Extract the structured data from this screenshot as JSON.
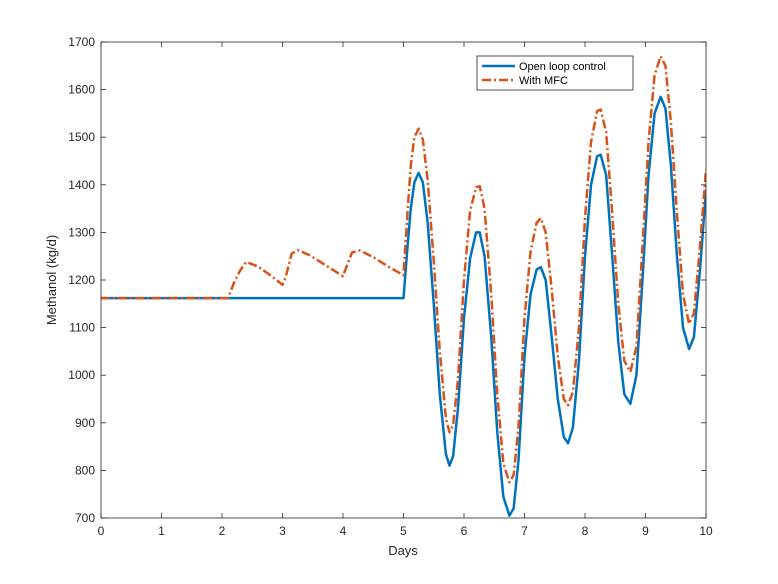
{
  "chart_data": {
    "type": "line",
    "title": "",
    "xlabel": "Days",
    "ylabel": "Methanol (kg/d)",
    "xlim": [
      0,
      10
    ],
    "ylim": [
      700,
      1700
    ],
    "x_ticks": [
      0,
      1,
      2,
      3,
      4,
      5,
      6,
      7,
      8,
      9,
      10
    ],
    "y_ticks": [
      700,
      800,
      900,
      1000,
      1100,
      1200,
      1300,
      1400,
      1500,
      1600,
      1700
    ],
    "grid": false,
    "legend_position": "top-right",
    "series": [
      {
        "name": "Open loop control",
        "color": "#0072BD",
        "style": "solid",
        "points": [
          [
            0,
            1162
          ],
          [
            5,
            1162
          ],
          [
            5.06,
            1260
          ],
          [
            5.12,
            1350
          ],
          [
            5.18,
            1405
          ],
          [
            5.25,
            1425
          ],
          [
            5.32,
            1405
          ],
          [
            5.4,
            1320
          ],
          [
            5.5,
            1150
          ],
          [
            5.6,
            960
          ],
          [
            5.7,
            835
          ],
          [
            5.76,
            810
          ],
          [
            5.82,
            830
          ],
          [
            5.9,
            930
          ],
          [
            6.0,
            1120
          ],
          [
            6.1,
            1245
          ],
          [
            6.2,
            1300
          ],
          [
            6.26,
            1300
          ],
          [
            6.34,
            1250
          ],
          [
            6.45,
            1080
          ],
          [
            6.55,
            880
          ],
          [
            6.65,
            745
          ],
          [
            6.75,
            705
          ],
          [
            6.82,
            720
          ],
          [
            6.9,
            820
          ],
          [
            7.0,
            1040
          ],
          [
            7.1,
            1170
          ],
          [
            7.2,
            1222
          ],
          [
            7.27,
            1227
          ],
          [
            7.35,
            1200
          ],
          [
            7.45,
            1080
          ],
          [
            7.55,
            950
          ],
          [
            7.65,
            870
          ],
          [
            7.72,
            857
          ],
          [
            7.8,
            890
          ],
          [
            7.9,
            1030
          ],
          [
            8.0,
            1250
          ],
          [
            8.1,
            1400
          ],
          [
            8.2,
            1460
          ],
          [
            8.26,
            1463
          ],
          [
            8.35,
            1420
          ],
          [
            8.45,
            1250
          ],
          [
            8.55,
            1070
          ],
          [
            8.65,
            960
          ],
          [
            8.75,
            940
          ],
          [
            8.85,
            1000
          ],
          [
            8.95,
            1200
          ],
          [
            9.05,
            1420
          ],
          [
            9.15,
            1550
          ],
          [
            9.25,
            1585
          ],
          [
            9.33,
            1560
          ],
          [
            9.42,
            1440
          ],
          [
            9.52,
            1250
          ],
          [
            9.62,
            1100
          ],
          [
            9.72,
            1055
          ],
          [
            9.8,
            1080
          ],
          [
            9.9,
            1220
          ],
          [
            10.0,
            1390
          ]
        ]
      },
      {
        "name": "With MFC",
        "color": "#D95319",
        "style": "dashdot",
        "points": [
          [
            0,
            1162
          ],
          [
            2.1,
            1162
          ],
          [
            2.2,
            1195
          ],
          [
            2.3,
            1220
          ],
          [
            2.4,
            1238
          ],
          [
            2.6,
            1228
          ],
          [
            2.8,
            1210
          ],
          [
            3.0,
            1190
          ],
          [
            3.05,
            1205
          ],
          [
            3.15,
            1255
          ],
          [
            3.25,
            1263
          ],
          [
            3.45,
            1252
          ],
          [
            3.7,
            1232
          ],
          [
            4.0,
            1208
          ],
          [
            4.05,
            1225
          ],
          [
            4.15,
            1258
          ],
          [
            4.28,
            1262
          ],
          [
            4.5,
            1248
          ],
          [
            4.75,
            1228
          ],
          [
            5.0,
            1210
          ],
          [
            5.06,
            1330
          ],
          [
            5.12,
            1440
          ],
          [
            5.18,
            1500
          ],
          [
            5.25,
            1518
          ],
          [
            5.32,
            1495
          ],
          [
            5.4,
            1410
          ],
          [
            5.5,
            1240
          ],
          [
            5.6,
            1050
          ],
          [
            5.7,
            910
          ],
          [
            5.76,
            880
          ],
          [
            5.82,
            895
          ],
          [
            5.9,
            990
          ],
          [
            6.0,
            1200
          ],
          [
            6.1,
            1345
          ],
          [
            6.2,
            1395
          ],
          [
            6.26,
            1397
          ],
          [
            6.34,
            1350
          ],
          [
            6.45,
            1170
          ],
          [
            6.55,
            960
          ],
          [
            6.65,
            815
          ],
          [
            6.75,
            775
          ],
          [
            6.82,
            790
          ],
          [
            6.9,
            890
          ],
          [
            7.0,
            1120
          ],
          [
            7.1,
            1260
          ],
          [
            7.2,
            1320
          ],
          [
            7.27,
            1330
          ],
          [
            7.35,
            1300
          ],
          [
            7.45,
            1180
          ],
          [
            7.55,
            1040
          ],
          [
            7.65,
            950
          ],
          [
            7.72,
            937
          ],
          [
            7.8,
            965
          ],
          [
            7.9,
            1100
          ],
          [
            8.0,
            1330
          ],
          [
            8.1,
            1490
          ],
          [
            8.2,
            1555
          ],
          [
            8.26,
            1558
          ],
          [
            8.35,
            1510
          ],
          [
            8.45,
            1340
          ],
          [
            8.55,
            1150
          ],
          [
            8.65,
            1030
          ],
          [
            8.75,
            1007
          ],
          [
            8.85,
            1060
          ],
          [
            8.95,
            1270
          ],
          [
            9.05,
            1490
          ],
          [
            9.15,
            1630
          ],
          [
            9.25,
            1670
          ],
          [
            9.33,
            1650
          ],
          [
            9.42,
            1530
          ],
          [
            9.52,
            1340
          ],
          [
            9.62,
            1170
          ],
          [
            9.72,
            1108
          ],
          [
            9.8,
            1130
          ],
          [
            9.9,
            1270
          ],
          [
            10.0,
            1432
          ]
        ]
      }
    ]
  }
}
